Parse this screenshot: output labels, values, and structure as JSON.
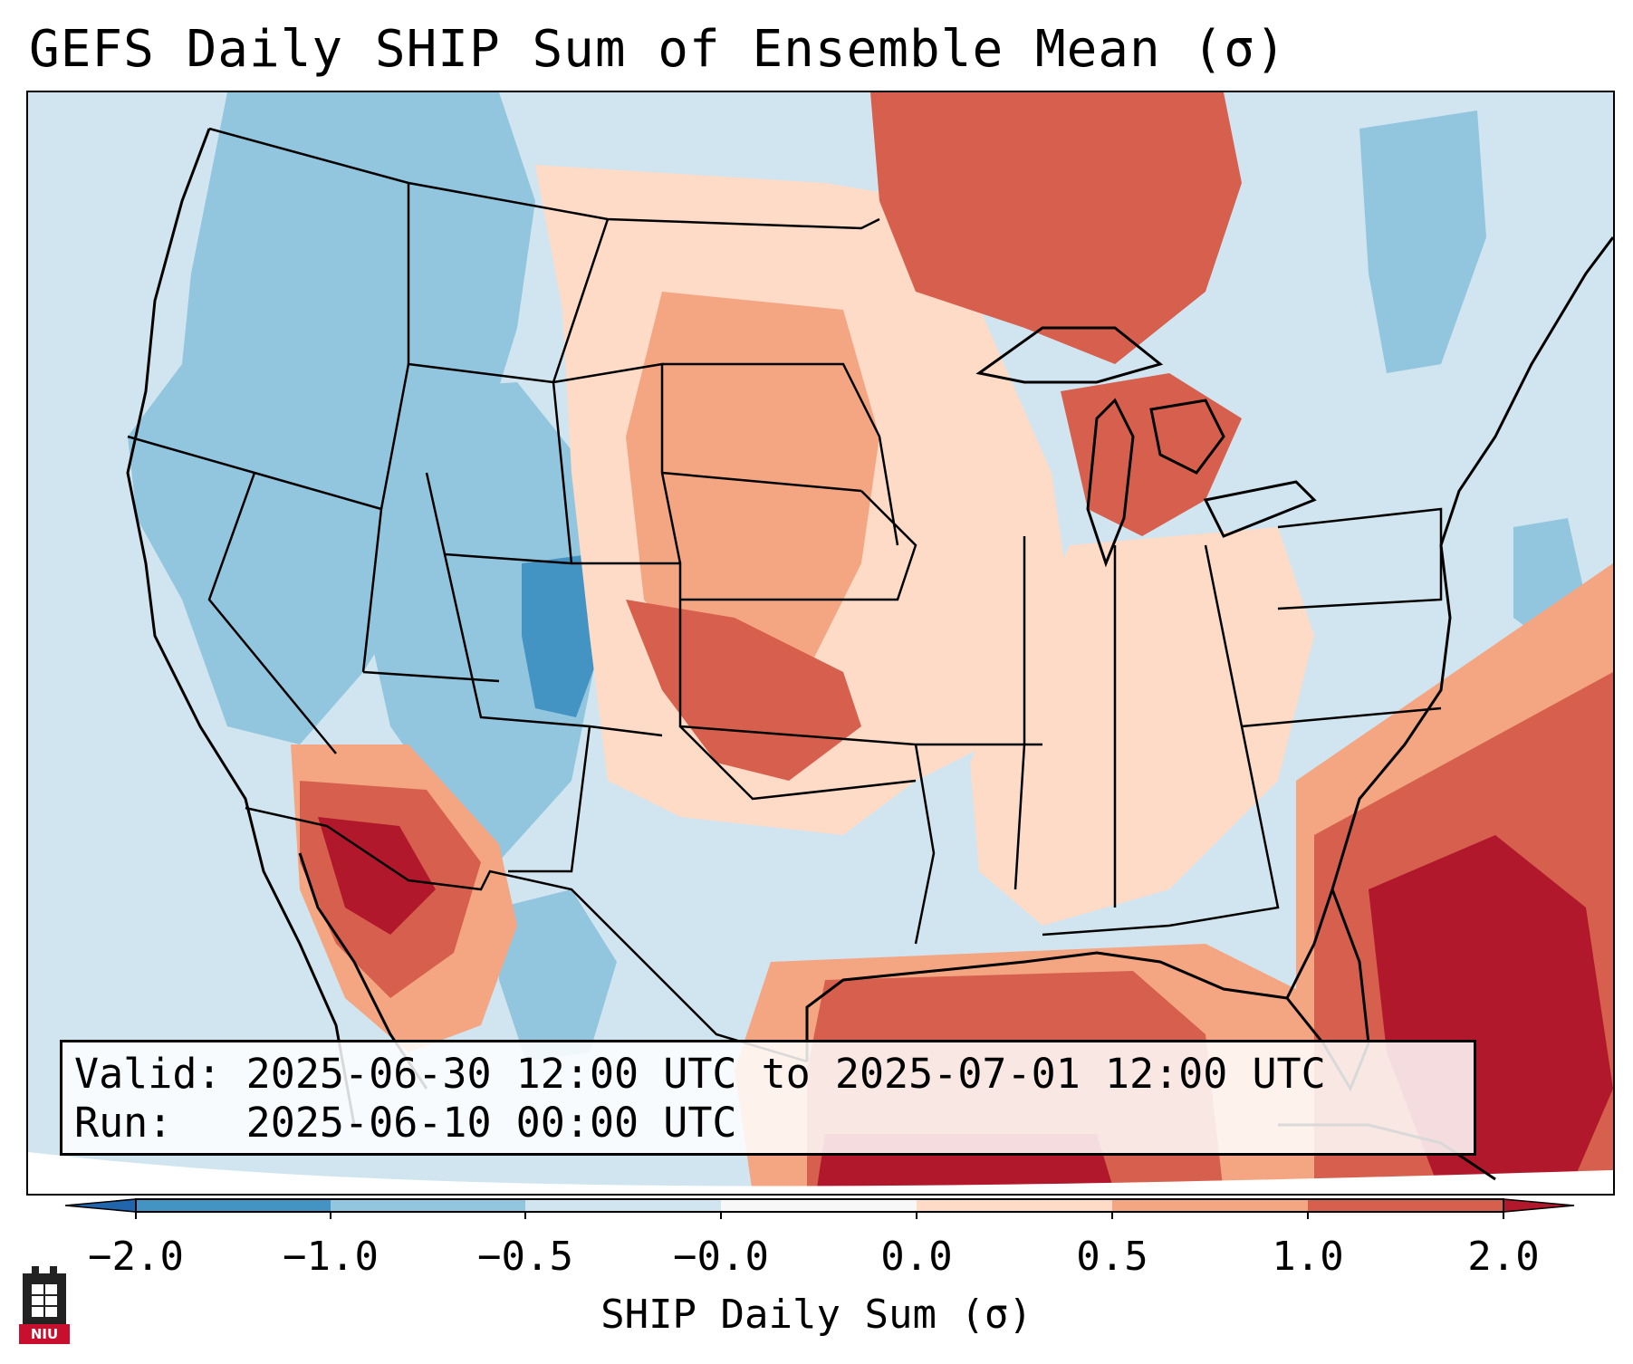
{
  "title": "GEFS Daily SHIP Sum of Ensemble Mean (σ)",
  "info": {
    "valid_label": "Valid:",
    "valid_value": "2025-06-30 12:00 UTC to 2025-07-01 12:00 UTC",
    "run_label": "Run:",
    "run_value": "2025-06-10 00:00 UTC"
  },
  "colorbar": {
    "label": "SHIP Daily Sum (σ)",
    "ticks": [
      "−2.0",
      "−1.0",
      "−0.5",
      "−0.0",
      "0.0",
      "0.5",
      "1.0",
      "2.0"
    ],
    "colors": {
      "under": "#2166ac",
      "neg_2_to_1": "#4393c3",
      "neg_1_to_05": "#92c5de",
      "neg_05_to_0": "#d1e5f0",
      "zero_band": "#f7f7f7",
      "pos_0_to_05": "#fddbc7",
      "pos_05_to_1": "#f4a582",
      "pos_1_to_2": "#d6604d",
      "over": "#b2182b"
    }
  },
  "logo": {
    "text": "NIU"
  }
}
